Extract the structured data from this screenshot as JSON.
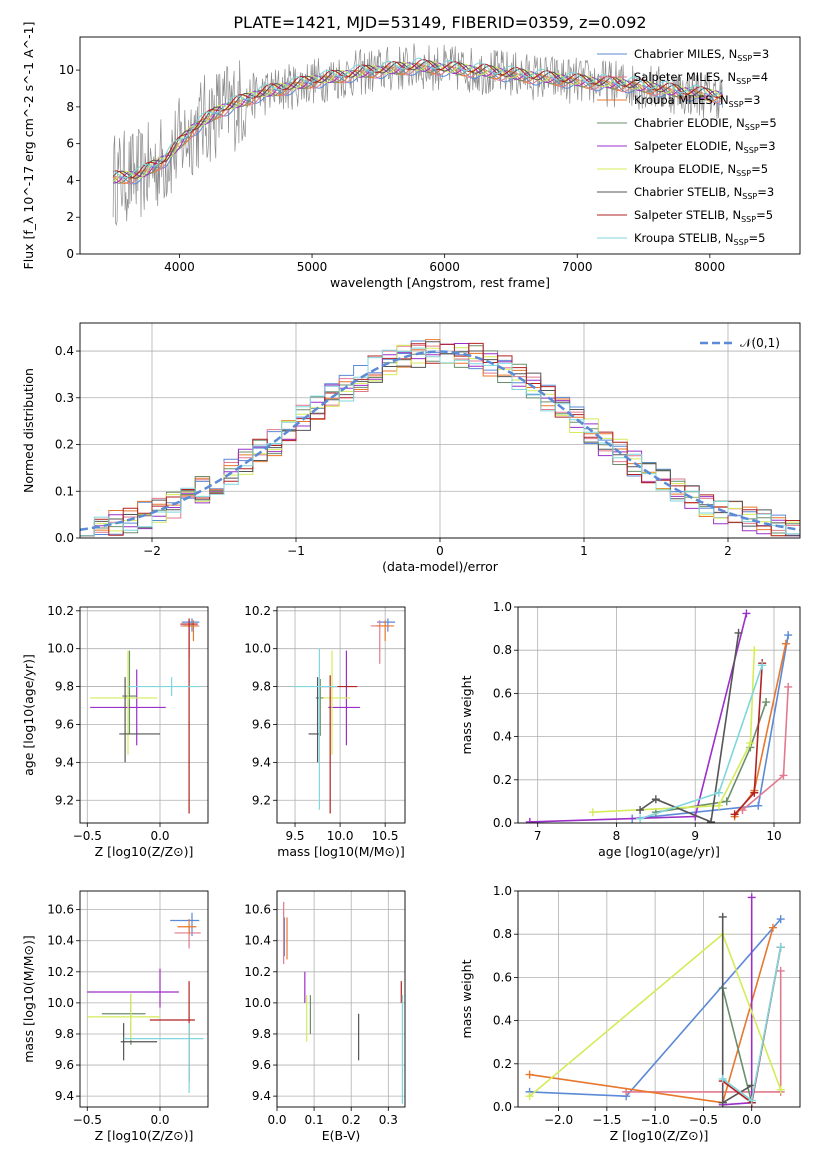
{
  "figure_title": "PLATE=1421, MJD=53149, FIBERID=0359, z=0.092",
  "colors": {
    "Chabrier MILES": "#5b8ad6",
    "Salpeter MILES": "#e07a8f",
    "Kroupa MILES": "#e8772e",
    "Chabrier ELODIE": "#6b8f6b",
    "Salpeter ELODIE": "#9b30c8",
    "Kroupa ELODIE": "#d4ec5a",
    "Chabrier STELIB": "#555555",
    "Salpeter STELIB": "#b22222",
    "Kroupa STELIB": "#7fd6dc"
  },
  "chart_data": [
    {
      "id": "spectrum",
      "type": "line",
      "xlabel": "wavelength [Angstrom, rest frame]",
      "ylabel": "Flux [f_λ 10^-17 erg cm^-2 s^-1 A^-1]",
      "xlim": [
        3250,
        8680
      ],
      "ylim": [
        0,
        11.8
      ],
      "xticks": [
        4000,
        5000,
        6000,
        7000,
        8000
      ],
      "yticks": [
        0,
        2,
        4,
        6,
        8,
        10
      ],
      "grid": false,
      "legend_position": "right",
      "legend": [
        {
          "name": "Chabrier MILES",
          "nssp": "3"
        },
        {
          "name": "Salpeter MILES",
          "nssp": "4"
        },
        {
          "name": "Kroupa MILES",
          "nssp": "3"
        },
        {
          "name": "Chabrier ELODIE",
          "nssp": "5"
        },
        {
          "name": "Salpeter ELODIE",
          "nssp": "3"
        },
        {
          "name": "Kroupa ELODIE",
          "nssp": "5"
        },
        {
          "name": "Chabrier STELIB",
          "nssp": "3"
        },
        {
          "name": "Salpeter STELIB",
          "nssp": "5"
        },
        {
          "name": "Kroupa STELIB",
          "nssp": "5"
        }
      ],
      "continuum_x": [
        3500,
        3700,
        3900,
        4100,
        4300,
        4600,
        5000,
        5400,
        5800,
        6200,
        6600,
        7000,
        7400,
        7800,
        8200
      ],
      "continuum_y": [
        4.1,
        4.3,
        5.2,
        6.8,
        7.8,
        8.7,
        9.4,
        9.9,
        10.2,
        10.0,
        9.7,
        9.4,
        9.2,
        8.8,
        8.5
      ],
      "data_range": [
        3500,
        8100
      ]
    },
    {
      "id": "residual-histogram",
      "type": "histogram",
      "xlabel": "(data-model)/error",
      "ylabel": "Normed distribution",
      "xlim": [
        -2.5,
        2.5
      ],
      "ylim": [
        0,
        0.46
      ],
      "xticks": [
        -2,
        -1,
        0,
        1,
        2
      ],
      "yticks": [
        0.0,
        0.1,
        0.2,
        0.3,
        0.4
      ],
      "grid": true,
      "legend_position": "top-right",
      "reference_curve": "𝒩(0,1)",
      "bin_width": 0.1
    },
    {
      "id": "age-vs-Z",
      "type": "scatter",
      "xlabel": "Z [log10(Z/Z⊙)]",
      "ylabel": "age  [log10(age/yr)]",
      "xlim": [
        -0.55,
        0.33
      ],
      "ylim": [
        9.08,
        10.22
      ],
      "xticks": [
        -0.5,
        0.0
      ],
      "yticks": [
        9.2,
        9.4,
        9.6,
        9.8,
        10.0,
        10.2
      ],
      "grid": true,
      "points": [
        {
          "model": "Chabrier MILES",
          "x": 0.22,
          "xerr": [
            0.07,
            0.05
          ],
          "y": 10.14,
          "yerr": [
            0.05,
            0.02
          ]
        },
        {
          "model": "Salpeter MILES",
          "x": 0.2,
          "xerr": [
            0.06,
            0.07
          ],
          "y": 10.12,
          "yerr": [
            0.17,
            0.03
          ]
        },
        {
          "model": "Kroupa MILES",
          "x": 0.23,
          "xerr": [
            0.07,
            0.03
          ],
          "y": 10.12,
          "yerr": [
            0.08,
            0.03
          ]
        },
        {
          "model": "Chabrier ELODIE",
          "x": -0.21,
          "xerr": [
            0.05,
            0.05
          ],
          "y": 9.75,
          "yerr": [
            0.2,
            0.24
          ]
        },
        {
          "model": "Salpeter ELODIE",
          "x": -0.16,
          "xerr": [
            0.32,
            0.2
          ],
          "y": 9.69,
          "yerr": [
            0.2,
            0.2
          ]
        },
        {
          "model": "Kroupa ELODIE",
          "x": -0.22,
          "xerr": [
            0.26,
            0.2
          ],
          "y": 9.74,
          "yerr": [
            0.3,
            0.25
          ]
        },
        {
          "model": "Chabrier STELIB",
          "x": -0.24,
          "xerr": [
            0.04,
            0.24
          ],
          "y": 9.55,
          "yerr": [
            0.15,
            0.3
          ]
        },
        {
          "model": "Salpeter STELIB",
          "x": 0.2,
          "xerr": [
            0.06,
            0.06
          ],
          "y": 10.13,
          "yerr": [
            1.0,
            0.03
          ]
        },
        {
          "model": "Kroupa STELIB",
          "x": 0.08,
          "xerr": [
            0.3,
            0.2
          ],
          "y": 9.8,
          "yerr": [
            0.05,
            0.05
          ]
        }
      ]
    },
    {
      "id": "age-vs-mass",
      "type": "scatter",
      "xlabel": "mass [log10(M/M⊙)]",
      "ylabel": "",
      "xlim": [
        9.3,
        10.72
      ],
      "ylim": [
        9.08,
        10.22
      ],
      "xticks": [
        9.5,
        10.0,
        10.5
      ],
      "yticks": [
        9.2,
        9.4,
        9.6,
        9.8,
        10.0,
        10.2
      ],
      "grid": true,
      "points": [
        {
          "model": "Chabrier MILES",
          "x": 10.53,
          "xerr": [
            0.12,
            0.08
          ],
          "y": 10.14,
          "yerr": [
            0.05,
            0.02
          ]
        },
        {
          "model": "Salpeter MILES",
          "x": 10.44,
          "xerr": [
            0.1,
            0.1
          ],
          "y": 10.12,
          "yerr": [
            0.2,
            0.03
          ]
        },
        {
          "model": "Kroupa MILES",
          "x": 10.5,
          "xerr": [
            0.1,
            0.1
          ],
          "y": 10.12,
          "yerr": [
            0.08,
            0.03
          ]
        },
        {
          "model": "Chabrier ELODIE",
          "x": 9.78,
          "xerr": [
            0.05,
            0.05
          ],
          "y": 9.74,
          "yerr": [
            0.2,
            0.1
          ]
        },
        {
          "model": "Salpeter ELODIE",
          "x": 10.07,
          "xerr": [
            0.2,
            0.15
          ],
          "y": 9.69,
          "yerr": [
            0.2,
            0.3
          ]
        },
        {
          "model": "Kroupa ELODIE",
          "x": 9.91,
          "xerr": [
            0.1,
            0.2
          ],
          "y": 9.74,
          "yerr": [
            0.3,
            0.25
          ]
        },
        {
          "model": "Chabrier STELIB",
          "x": 9.75,
          "xerr": [
            0.1,
            0.03
          ],
          "y": 9.55,
          "yerr": [
            0.15,
            0.3
          ]
        },
        {
          "model": "Salpeter STELIB",
          "x": 9.89,
          "xerr": [
            0.1,
            0.3
          ],
          "y": 9.8,
          "yerr": [
            0.67,
            0.06
          ]
        },
        {
          "model": "Kroupa STELIB",
          "x": 9.77,
          "xerr": [
            0.3,
            0.2
          ],
          "y": 9.8,
          "yerr": [
            0.65,
            0.2
          ]
        }
      ]
    },
    {
      "id": "weight-vs-age",
      "type": "line",
      "xlabel": "age  [log10(age/yr)]",
      "ylabel": "mass weight",
      "xlim": [
        6.75,
        10.33
      ],
      "ylim": [
        0,
        1.0
      ],
      "xticks": [
        7,
        8,
        9,
        10
      ],
      "yticks": [
        0.0,
        0.2,
        0.4,
        0.6,
        0.8,
        1.0
      ],
      "grid": true,
      "series": [
        {
          "model": "Chabrier MILES",
          "x": [
            8.2,
            9.8,
            10.18
          ],
          "y": [
            0.02,
            0.08,
            0.87
          ]
        },
        {
          "model": "Salpeter MILES",
          "x": [
            9.6,
            10.12,
            10.18
          ],
          "y": [
            0.06,
            0.22,
            0.63
          ]
        },
        {
          "model": "Kroupa MILES",
          "x": [
            9.5,
            9.75,
            10.15
          ],
          "y": [
            0.03,
            0.15,
            0.83
          ]
        },
        {
          "model": "Chabrier ELODIE",
          "x": [
            8.5,
            9.4,
            9.7,
            9.9
          ],
          "y": [
            0.05,
            0.1,
            0.35,
            0.56
          ]
        },
        {
          "model": "Salpeter ELODIE",
          "x": [
            6.9,
            9.0,
            9.65
          ],
          "y": [
            0.005,
            0.03,
            0.97
          ]
        },
        {
          "model": "Kroupa ELODIE",
          "x": [
            7.7,
            9.3,
            9.7,
            9.75
          ],
          "y": [
            0.05,
            0.08,
            0.37,
            0.8
          ]
        },
        {
          "model": "Chabrier STELIB",
          "x": [
            8.3,
            8.5,
            9.2,
            9.55
          ],
          "y": [
            0.06,
            0.11,
            0.005,
            0.88
          ]
        },
        {
          "model": "Salpeter STELIB",
          "x": [
            9.5,
            9.75,
            9.85
          ],
          "y": [
            0.04,
            0.14,
            0.74
          ]
        },
        {
          "model": "Kroupa STELIB",
          "x": [
            8.3,
            9.3,
            9.85
          ],
          "y": [
            0.02,
            0.14,
            0.73
          ]
        }
      ]
    },
    {
      "id": "mass-vs-Z",
      "type": "scatter",
      "xlabel": "Z [log10(Z/Z⊙)]",
      "ylabel": "mass [log10(M/M⊙)]",
      "xlim": [
        -0.55,
        0.33
      ],
      "ylim": [
        9.33,
        10.72
      ],
      "xticks": [
        -0.5,
        0.0
      ],
      "yticks": [
        9.4,
        9.6,
        9.8,
        10.0,
        10.2,
        10.4,
        10.6
      ],
      "grid": true,
      "points": [
        {
          "model": "Chabrier MILES",
          "x": 0.22,
          "xerr": [
            0.15,
            0.05
          ],
          "y": 10.53,
          "yerr": [
            0.1,
            0.05
          ]
        },
        {
          "model": "Salpeter MILES",
          "x": 0.2,
          "xerr": [
            0.1,
            0.08
          ],
          "y": 10.45,
          "yerr": [
            0.1,
            0.05
          ]
        },
        {
          "model": "Kroupa MILES",
          "x": 0.2,
          "xerr": [
            0.08,
            0.05
          ],
          "y": 10.49,
          "yerr": [
            0.05,
            0.05
          ]
        },
        {
          "model": "Chabrier ELODIE",
          "x": -0.2,
          "xerr": [
            0.2,
            0.1
          ],
          "y": 9.93,
          "yerr": [
            0.2,
            0.13
          ]
        },
        {
          "model": "Salpeter ELODIE",
          "x": 0.0,
          "xerr": [
            0.5,
            0.13
          ],
          "y": 10.07,
          "yerr": [
            0.1,
            0.15
          ]
        },
        {
          "model": "Kroupa ELODIE",
          "x": -0.2,
          "xerr": [
            0.3,
            0.2
          ],
          "y": 9.91,
          "yerr": [
            0.15,
            0.15
          ]
        },
        {
          "model": "Chabrier STELIB",
          "x": -0.25,
          "xerr": [
            0.02,
            0.23
          ],
          "y": 9.75,
          "yerr": [
            0.12,
            0.12
          ]
        },
        {
          "model": "Salpeter STELIB",
          "x": 0.2,
          "xerr": [
            0.27,
            0.04
          ],
          "y": 9.89,
          "yerr": [
            0.4,
            0.25
          ]
        },
        {
          "model": "Kroupa STELIB",
          "x": 0.2,
          "xerr": [
            0.45,
            0.1
          ],
          "y": 9.77,
          "yerr": [
            0.35,
            0.1
          ]
        }
      ]
    },
    {
      "id": "mass-vs-ebv",
      "type": "scatter",
      "xlabel": "E(B-V)",
      "ylabel": "",
      "xlim": [
        0.0,
        0.345
      ],
      "ylim": [
        9.33,
        10.72
      ],
      "xticks": [
        0.0,
        0.1,
        0.2,
        0.3
      ],
      "yticks": [
        9.4,
        9.6,
        9.8,
        10.0,
        10.2,
        10.4,
        10.6
      ],
      "grid": true,
      "points": [
        {
          "model": "Chabrier MILES",
          "x": 0.02,
          "yerr": [
            0.15,
            0.1
          ],
          "y": 10.45
        },
        {
          "model": "Salpeter MILES",
          "x": 0.018,
          "yerr": [
            0.2,
            0.2
          ],
          "y": 10.45
        },
        {
          "model": "Kroupa MILES",
          "x": 0.027,
          "yerr": [
            0.17,
            0.1
          ],
          "y": 10.45
        },
        {
          "model": "Chabrier ELODIE",
          "x": 0.09,
          "yerr": [
            0.2,
            0.05
          ],
          "y": 10.0
        },
        {
          "model": "Salpeter ELODIE",
          "x": 0.075,
          "yerr": [
            0.1,
            0.1
          ],
          "y": 10.1
        },
        {
          "model": "Kroupa ELODIE",
          "x": 0.08,
          "yerr": [
            0.15,
            0.15
          ],
          "y": 9.9
        },
        {
          "model": "Chabrier STELIB",
          "x": 0.22,
          "yerr": [
            0.15,
            0.15
          ],
          "y": 9.78
        },
        {
          "model": "Salpeter STELIB",
          "x": 0.335,
          "yerr": [
            0.1,
            0.04
          ],
          "y": 10.1
        },
        {
          "model": "Kroupa STELIB",
          "x": 0.338,
          "yerr": [
            0.6,
            0.1
          ],
          "y": 9.95
        }
      ]
    },
    {
      "id": "weight-vs-Z",
      "type": "line",
      "xlabel": "Z [log10(Z/Z⊙)]",
      "ylabel": "mass weight",
      "xlim": [
        -2.42,
        0.5
      ],
      "ylim": [
        0,
        1.0
      ],
      "xticks": [
        -2.0,
        -1.5,
        -1.0,
        -0.5,
        0.0
      ],
      "yticks": [
        0.0,
        0.2,
        0.4,
        0.6,
        0.8,
        1.0
      ],
      "grid": true,
      "series": [
        {
          "model": "Chabrier MILES",
          "x": [
            -2.3,
            -1.3,
            0.3
          ],
          "y": [
            0.07,
            0.05,
            0.87
          ]
        },
        {
          "model": "Salpeter MILES",
          "x": [
            -1.3,
            0.3,
            0.3
          ],
          "y": [
            0.07,
            0.07,
            0.63
          ]
        },
        {
          "model": "Kroupa MILES",
          "x": [
            -2.3,
            -0.3,
            0.22
          ],
          "y": [
            0.15,
            0.02,
            0.83
          ]
        },
        {
          "model": "Chabrier ELODIE",
          "x": [
            -0.3,
            0.0,
            0.3
          ],
          "y": [
            0.55,
            0.02,
            0.74
          ]
        },
        {
          "model": "Salpeter ELODIE",
          "x": [
            0.0,
            0.0,
            -0.3
          ],
          "y": [
            0.97,
            0.02,
            0.01
          ]
        },
        {
          "model": "Kroupa ELODIE",
          "x": [
            -2.3,
            -0.3,
            0.3
          ],
          "y": [
            0.05,
            0.8,
            0.08
          ]
        },
        {
          "model": "Chabrier STELIB",
          "x": [
            -0.3,
            -0.3,
            0.0
          ],
          "y": [
            0.88,
            0.02,
            0.1
          ]
        },
        {
          "model": "Salpeter STELIB",
          "x": [
            -0.3,
            0.0,
            0.3
          ],
          "y": [
            0.12,
            0.02,
            0.74
          ]
        },
        {
          "model": "Kroupa STELIB",
          "x": [
            -0.3,
            0.0,
            0.3
          ],
          "y": [
            0.13,
            0.03,
            0.74
          ]
        }
      ]
    }
  ]
}
